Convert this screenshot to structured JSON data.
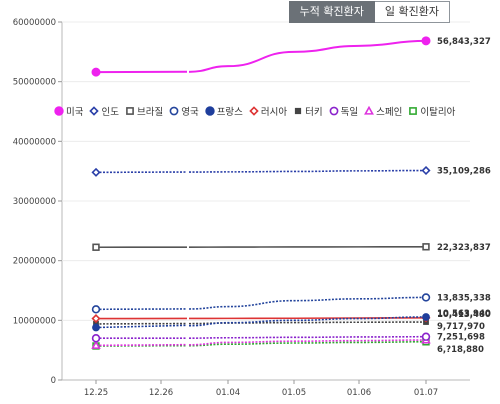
{
  "tabs": [
    {
      "label": "누적 확진환자",
      "active": true
    },
    {
      "label": "일 확진환자",
      "active": false
    }
  ],
  "chart_data": {
    "type": "line",
    "title": "",
    "xlabel": "",
    "ylabel": "",
    "x": [
      "12.25",
      "12.26",
      "01.04",
      "01.05",
      "01.06",
      "01.07"
    ],
    "ylim": [
      0,
      60000000
    ],
    "yticks": [
      0,
      10000000,
      20000000,
      30000000,
      40000000,
      50000000,
      60000000
    ],
    "ytick_labels": [
      "0",
      "10000000",
      "20000000",
      "30000000",
      "40000000",
      "50000000",
      "60000000"
    ],
    "grid": "horizontal",
    "legend_position": "middle-left",
    "series": [
      {
        "name": "미국",
        "color": "#ee22ee",
        "marker": "filled-circle",
        "values": [
          51600000,
          51650000,
          52600000,
          55000000,
          56000000,
          56843327
        ],
        "end_label": "56,843,327"
      },
      {
        "name": "인도",
        "color": "#2a3fa8",
        "marker": "open-diamond",
        "values": [
          34800000,
          34850000,
          34880000,
          34950000,
          35050000,
          35109286
        ],
        "end_label": "35,109,286"
      },
      {
        "name": "브라질",
        "color": "#555555",
        "marker": "open-square",
        "values": [
          22250000,
          22260000,
          22280000,
          22300000,
          22310000,
          22323837
        ],
        "end_label": "22,323,837"
      },
      {
        "name": "영국",
        "color": "#24459c",
        "marker": "open-circle",
        "values": [
          11850000,
          11900000,
          12300000,
          13300000,
          13600000,
          13835338
        ],
        "end_label": "13,835,338"
      },
      {
        "name": "프랑스",
        "color": "#1f3e9c",
        "marker": "filled-circle",
        "values": [
          8800000,
          9100000,
          9600000,
          10000000,
          10300000,
          10563940
        ],
        "end_label": "10,563,940"
      },
      {
        "name": "러시아",
        "color": "#dd3333",
        "marker": "open-diamond",
        "values": [
          10300000,
          10310000,
          10330000,
          10350000,
          10390000,
          10413480
        ],
        "end_label": "10,413,480"
      },
      {
        "name": "터키",
        "color": "#444444",
        "marker": "filled-square",
        "values": [
          9400000,
          9450000,
          9550000,
          9620000,
          9680000,
          9717970
        ],
        "end_label": "9,717,970"
      },
      {
        "name": "독일",
        "color": "#8a22cc",
        "marker": "open-circle",
        "values": [
          7000000,
          7010000,
          7080000,
          7150000,
          7210000,
          7251698
        ],
        "end_label": "7,251,698"
      },
      {
        "name": "스페인",
        "color": "#dd33dd",
        "marker": "open-triangle",
        "values": [
          5800000,
          5900000,
          6300000,
          6500000,
          6600000,
          6700000
        ],
        "end_label": ""
      },
      {
        "name": "이탈리아",
        "color": "#33aa33",
        "marker": "open-square",
        "values": [
          5700000,
          5750000,
          6000000,
          6200000,
          6300000,
          6400000
        ],
        "end_label": "6,?18,880"
      }
    ]
  }
}
